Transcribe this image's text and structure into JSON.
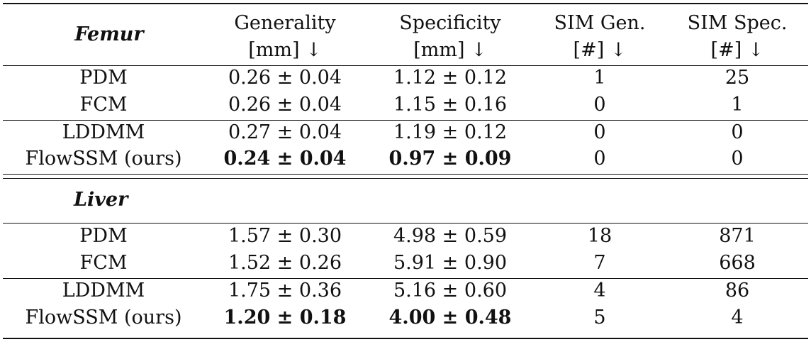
{
  "headers": [
    {
      "line1": "Generality",
      "line2": "[mm] ↓"
    },
    {
      "line1": "Specificity",
      "line2": "[mm] ↓"
    },
    {
      "line1": "SIM Gen.",
      "line2": "[#] ↓"
    },
    {
      "line1": "SIM Spec.",
      "line2": "[#] ↓"
    }
  ],
  "femur": {
    "title": "Femur",
    "rows": [
      {
        "method": "PDM",
        "generality": "0.26 ± 0.04",
        "specificity": "1.12 ± 0.12",
        "sim_gen": "1",
        "sim_spec": "25"
      },
      {
        "method": "FCM",
        "generality": "0.26 ± 0.04",
        "specificity": "1.15 ± 0.16",
        "sim_gen": "0",
        "sim_spec": "1"
      },
      {
        "method": "LDDMM",
        "generality": "0.27 ± 0.04",
        "specificity": "1.19 ± 0.12",
        "sim_gen": "0",
        "sim_spec": "0"
      },
      {
        "method": "FlowSSM (ours)",
        "generality": "0.24 ± 0.04",
        "specificity": "0.97 ± 0.09",
        "sim_gen": "0",
        "sim_spec": "0"
      }
    ]
  },
  "liver": {
    "title": "Liver",
    "rows": [
      {
        "method": "PDM",
        "generality": "1.57 ± 0.30",
        "specificity": "4.98 ± 0.59",
        "sim_gen": "18",
        "sim_spec": "871"
      },
      {
        "method": "FCM",
        "generality": "1.52 ± 0.26",
        "specificity": "5.91 ± 0.90",
        "sim_gen": "7",
        "sim_spec": "668"
      },
      {
        "method": "LDDMM",
        "generality": "1.75 ± 0.36",
        "specificity": "5.16 ± 0.60",
        "sim_gen": "4",
        "sim_spec": "86"
      },
      {
        "method": "FlowSSM (ours)",
        "generality": "1.20 ± 0.18",
        "specificity": "4.00 ± 0.48",
        "sim_gen": "5",
        "sim_spec": "4"
      }
    ]
  }
}
